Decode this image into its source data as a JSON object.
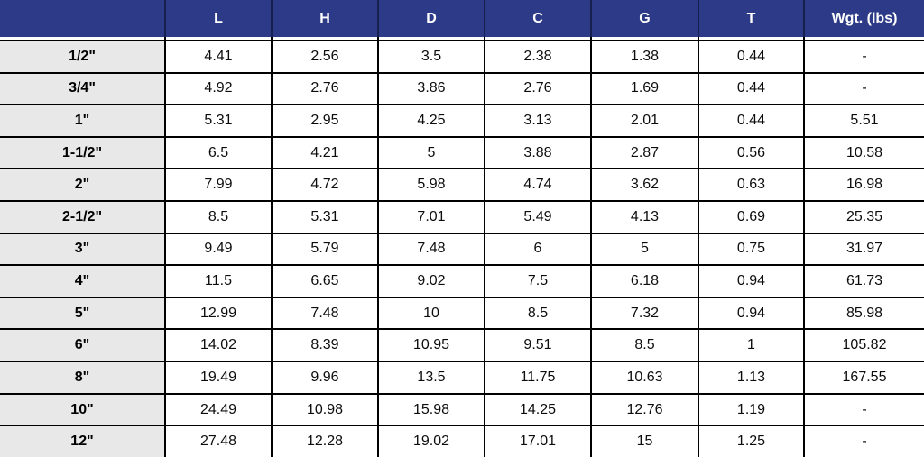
{
  "chart_data": {
    "type": "table",
    "description": "Dimensional specification table by nominal size (inches)",
    "columns": [
      "",
      "L",
      "H",
      "D",
      "C",
      "G",
      "T",
      "Wgt. (lbs)"
    ],
    "rows": [
      [
        "1/2\"",
        "4.41",
        "2.56",
        "3.5",
        "2.38",
        "1.38",
        "0.44",
        "-"
      ],
      [
        "3/4\"",
        "4.92",
        "2.76",
        "3.86",
        "2.76",
        "1.69",
        "0.44",
        "-"
      ],
      [
        "1\"",
        "5.31",
        "2.95",
        "4.25",
        "3.13",
        "2.01",
        "0.44",
        "5.51"
      ],
      [
        "1-1/2\"",
        "6.5",
        "4.21",
        "5",
        "3.88",
        "2.87",
        "0.56",
        "10.58"
      ],
      [
        "2\"",
        "7.99",
        "4.72",
        "5.98",
        "4.74",
        "3.62",
        "0.63",
        "16.98"
      ],
      [
        "2-1/2\"",
        "8.5",
        "5.31",
        "7.01",
        "5.49",
        "4.13",
        "0.69",
        "25.35"
      ],
      [
        "3\"",
        "9.49",
        "5.79",
        "7.48",
        "6",
        "5",
        "0.75",
        "31.97"
      ],
      [
        "4\"",
        "11.5",
        "6.65",
        "9.02",
        "7.5",
        "6.18",
        "0.94",
        "61.73"
      ],
      [
        "5\"",
        "12.99",
        "7.48",
        "10",
        "8.5",
        "7.32",
        "0.94",
        "85.98"
      ],
      [
        "6\"",
        "14.02",
        "8.39",
        "10.95",
        "9.51",
        "8.5",
        "1",
        "105.82"
      ],
      [
        "8\"",
        "19.49",
        "9.96",
        "13.5",
        "11.75",
        "10.63",
        "1.13",
        "167.55"
      ],
      [
        "10\"",
        "24.49",
        "10.98",
        "15.98",
        "14.25",
        "12.76",
        "1.19",
        "-"
      ],
      [
        "12\"",
        "27.48",
        "12.28",
        "19.02",
        "17.01",
        "15",
        "1.25",
        "-"
      ]
    ],
    "layout": {
      "legend": "none",
      "grid": "on",
      "first_column_role": "row-label"
    },
    "colors": {
      "header_bg": "#2d3a87",
      "header_text": "#ffffff",
      "label_col_bg": "#e8e8e8",
      "grid": "#000000"
    }
  }
}
